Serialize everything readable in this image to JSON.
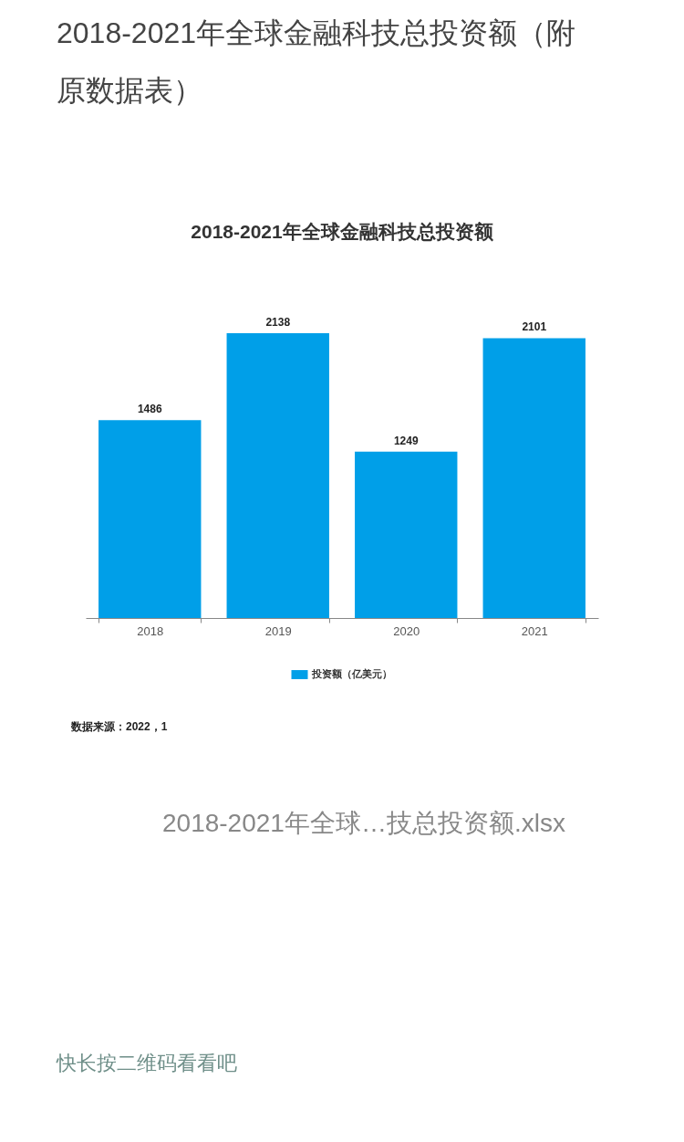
{
  "chart_data": {
    "type": "bar",
    "title": "2018-2021年全球金融科技总投资额（附原数据表）",
    "subtitle": "2018-2021年全球金融科技总投资额",
    "categories": [
      "2018",
      "2019",
      "2020",
      "2021"
    ],
    "series": [
      {
        "name": "投资额（亿美元）",
        "color": "#009fe8",
        "values": [
          1486,
          2138,
          1249,
          2101
        ]
      }
    ],
    "data_labels": true,
    "legend": "bottom",
    "annotations": [
      "数据来源：2022，1",
      "2018-2021年全球…技总投资额.xlsx",
      "快长按二维码看看吧"
    ]
  }
}
